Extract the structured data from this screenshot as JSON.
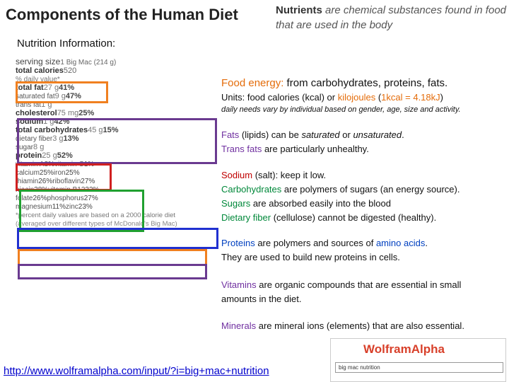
{
  "title": "Components of the Human Diet",
  "intro": [
    "Nutrients",
    " are chemical substances found in food that are used in the body"
  ],
  "section_label": "Nutrition Information:",
  "label": {
    "serving": [
      "serving size",
      "1 Big Mac (214 g)"
    ],
    "calories": [
      "total calories",
      "520"
    ],
    "daily_value_header": "% daily value*",
    "nutrients": [
      {
        "name": "total fat",
        "amount": "27 g",
        "dv": "41%"
      },
      {
        "name": "saturated fat",
        "amount": "9 g",
        "dv": "47%"
      },
      {
        "name": "trans fat",
        "amount": "1 g"
      },
      {
        "name": "cholesterol",
        "amount": "75 mg",
        "dv": "25%"
      },
      {
        "name": "sodium",
        "amount": "1 g",
        "dv": "42%"
      },
      {
        "name": "total carbohydrates",
        "amount": "45 g",
        "dv": "15%"
      },
      {
        "name": "dietary fiber",
        "amount": "3 g",
        "dv": "13%"
      },
      {
        "name": "sugar",
        "amount": "8 g"
      },
      {
        "name": "protein",
        "amount": "25 g",
        "dv": "52%"
      }
    ],
    "vitamins": [
      [
        {
          "name": "vitamin A",
          "dv": "8%"
        },
        {
          "name": "vitamin C",
          "dv": "1%"
        }
      ],
      [
        {
          "name": "calcium",
          "dv": "25%"
        },
        {
          "name": "iron",
          "dv": "25%"
        }
      ],
      [
        {
          "name": "thiamin",
          "dv": "26%"
        },
        {
          "name": "riboflavin",
          "dv": "27%"
        }
      ],
      [
        {
          "name": "niacin",
          "dv": "38%"
        },
        {
          "name": "vitamin B12",
          "dv": "32%"
        }
      ],
      [
        {
          "name": "folate",
          "dv": "26%"
        },
        {
          "name": "phosphorus",
          "dv": "27%"
        }
      ],
      [
        {
          "name": "magnesium",
          "dv": "11%"
        },
        {
          "name": "zinc",
          "dv": "23%"
        }
      ]
    ],
    "footnote": "*percent daily values are based on a 2000 calorie diet",
    "source_note": "(averaged over different types of McDonald's Big Mac)"
  },
  "notes": [
    [
      [
        "Food energy:",
        " from carbohydrates, proteins, fats."
      ],
      [
        "Units: food calories (kcal) or ",
        "kilojoules",
        " (",
        "1kcal = 4.18kJ",
        ")"
      ],
      [
        "daily needs vary by individual based on gender, age, size and activity."
      ]
    ],
    [
      [
        "Fats",
        " (lipids) can be ",
        "saturated",
        " or ",
        "unsaturated",
        "."
      ],
      [
        "Trans fats",
        " are particularly unhealthy."
      ]
    ],
    [
      [
        "Sodium",
        " (salt): keep it low."
      ],
      [
        "Carbohydrates",
        " are polymers of sugars (an energy source)."
      ],
      [
        "Sugars",
        " are absorbed easily into the blood"
      ],
      [
        "Dietary fiber",
        " (cellulose) cannot be digested (healthy)."
      ]
    ],
    [
      [
        "Proteins",
        " are polymers and sources of ",
        "amino acids",
        "."
      ],
      [
        "They are used to build new proteins in cells."
      ]
    ],
    [
      [
        "Vitamins",
        " are organic compounds that are essential in small"
      ],
      [
        "amounts in the diet."
      ]
    ],
    [
      [
        "Minerals",
        " are mineral ions (elements) that are also essential."
      ]
    ]
  ],
  "url": "http://www.wolframalpha.com/input/?i=big+mac+nutrition",
  "wolfram": {
    "logo": "WolframAlpha",
    "query": "big mac nutrition"
  }
}
